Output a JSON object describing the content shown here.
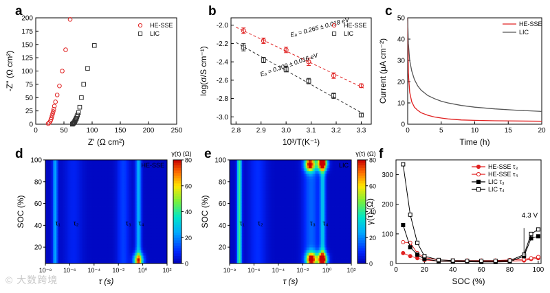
{
  "watermark": "© 大数跨境",
  "colors": {
    "red": "#e02020",
    "black": "#303030",
    "grey": "#666666"
  },
  "chart_data": [
    {
      "panel": "a",
      "type": "scatter",
      "xlabel": "Z' (Ω cm²)",
      "ylabel": "-Z'' (Ω cm²)",
      "xlim": [
        0,
        250
      ],
      "ylim": [
        0,
        200
      ],
      "xticks": [
        0,
        50,
        100,
        150,
        200,
        250
      ],
      "yticks": [
        0,
        25,
        50,
        75,
        100,
        125,
        150,
        175,
        200
      ],
      "legend": "top-right",
      "series": [
        {
          "name": "HE-SSE",
          "marker": "circle",
          "color": "#e02020",
          "x": [
            22,
            24,
            26,
            27,
            28,
            29,
            30,
            31,
            32,
            33,
            35,
            38,
            42,
            47,
            53,
            61
          ],
          "y": [
            1,
            3,
            6,
            9,
            12,
            16,
            20,
            24,
            28,
            34,
            42,
            55,
            72,
            100,
            140,
            197
          ]
        },
        {
          "name": "LIC",
          "marker": "square",
          "color": "#303030",
          "x": [
            65,
            66,
            67,
            68,
            69,
            70,
            71,
            72,
            73,
            74,
            76,
            78,
            81,
            85,
            92,
            104
          ],
          "y": [
            0,
            1,
            2,
            3,
            5,
            7,
            9,
            11,
            14,
            17,
            22,
            32,
            50,
            75,
            105,
            148
          ]
        }
      ]
    },
    {
      "panel": "b",
      "type": "scatter",
      "xlabel": "10³/T(K⁻¹)",
      "ylabel": "log(σ/S cm⁻¹)",
      "xlim": [
        2.78,
        3.34
      ],
      "ylim": [
        -3.08,
        -1.92
      ],
      "xticks": [
        2.8,
        2.9,
        3.0,
        3.1,
        3.2,
        3.3
      ],
      "yticks": [
        -2.0,
        -2.2,
        -2.4,
        -2.6,
        -2.8,
        -3.0
      ],
      "legend": "top-right",
      "annotations": [
        "Eₐ = 0.265 ± 0.018 eV",
        "Eₐ = 0.309 ± 0.016 eV"
      ],
      "series": [
        {
          "name": "HE-SSE",
          "marker": "circle",
          "color": "#e02020",
          "x": [
            2.83,
            2.91,
            3.0,
            3.09,
            3.19,
            3.3
          ],
          "y": [
            -2.06,
            -2.17,
            -2.27,
            -2.4,
            -2.55,
            -2.66
          ],
          "err": [
            0.03,
            0.03,
            0.03,
            0.04,
            0.03,
            0.02
          ]
        },
        {
          "name": "LIC",
          "marker": "square",
          "color": "#303030",
          "x": [
            2.83,
            2.91,
            3.0,
            3.09,
            3.19,
            3.3
          ],
          "y": [
            -2.24,
            -2.38,
            -2.48,
            -2.61,
            -2.77,
            -2.98
          ],
          "err": [
            0.04,
            0.03,
            0.03,
            0.03,
            0.03,
            0.02
          ]
        }
      ]
    },
    {
      "panel": "c",
      "type": "line",
      "xlabel": "Time (h)",
      "ylabel": "Current (μA cm⁻²)",
      "xlim": [
        0,
        20
      ],
      "ylim": [
        0,
        50
      ],
      "xticks": [
        0,
        5,
        10,
        15,
        20
      ],
      "yticks": [
        0,
        10,
        20,
        30,
        40,
        50
      ],
      "legend": "top-right",
      "series": [
        {
          "name": "HE-SSE",
          "color": "#e02020",
          "x": [
            0,
            0.1,
            0.3,
            0.6,
            1,
            1.5,
            2,
            3,
            4,
            5,
            6,
            8,
            10,
            13,
            16,
            20
          ],
          "y": [
            50,
            24,
            15,
            10.5,
            8,
            6.5,
            5.4,
            4.2,
            3.4,
            2.9,
            2.5,
            2.0,
            1.8,
            1.6,
            1.5,
            1.4
          ]
        },
        {
          "name": "LIC",
          "color": "#555555",
          "x": [
            0,
            0.1,
            0.3,
            0.6,
            1,
            1.5,
            2,
            3,
            4,
            5,
            6,
            8,
            10,
            13,
            16,
            20
          ],
          "y": [
            50,
            38,
            30,
            25,
            21,
            18,
            16,
            13.5,
            12,
            10.8,
            10,
            8.8,
            8,
            7.2,
            6.6,
            6.0
          ]
        }
      ]
    },
    {
      "panel": "d",
      "type": "heatmap",
      "title": "HE-SSE",
      "xlabel": "τ (s)",
      "ylabel": "SOC (%)",
      "xlim_log10": [
        -8,
        2
      ],
      "ylim": [
        5,
        100
      ],
      "xtick_labels": [
        "10⁻⁸",
        "10⁻⁶",
        "10⁻⁴",
        "10⁻²",
        "10⁰",
        "10²"
      ],
      "yticks": [
        20,
        40,
        60,
        80,
        100
      ],
      "colorbar": {
        "label": "γ(τ) (Ω)",
        "range": [
          0,
          80
        ],
        "ticks": [
          0,
          20,
          40,
          60,
          80
        ]
      },
      "peak_labels": [
        "τ₁",
        "τ₂",
        "τ₃",
        "τ₄"
      ],
      "peaks": [
        {
          "log_tau": -7.2,
          "width": 0.14,
          "amp": 22
        },
        {
          "log_tau": -5.7,
          "width": 0.5,
          "amp": 6
        },
        {
          "log_tau": -1.6,
          "width": 0.35,
          "amp": 10
        },
        {
          "log_tau": -0.35,
          "width": 0.16,
          "amp": 24
        }
      ],
      "hot_spots": [
        {
          "log_tau": -0.35,
          "soc": 8,
          "amp": 55
        }
      ]
    },
    {
      "panel": "e",
      "type": "heatmap",
      "title": "LIC",
      "xlabel": "τ (s)",
      "ylabel": "SOC (%)",
      "xlim_log10": [
        -8,
        2
      ],
      "ylim": [
        5,
        100
      ],
      "xtick_labels": [
        "10⁻⁸",
        "10⁻⁶",
        "10⁻⁴",
        "10⁻²",
        "10⁰",
        "10²"
      ],
      "yticks": [
        20,
        40,
        60,
        80,
        100
      ],
      "colorbar": {
        "label": "γ(τ) (Ω)",
        "range": [
          0,
          80
        ],
        "ticks": [
          0,
          20,
          40,
          60,
          80
        ]
      },
      "peak_labels": [
        "τ₁",
        "τ₂",
        "τ₃",
        "τ₄"
      ],
      "peaks": [
        {
          "log_tau": -7.2,
          "width": 0.13,
          "amp": 40
        },
        {
          "log_tau": -5.7,
          "width": 0.5,
          "amp": 8
        },
        {
          "log_tau": -1.3,
          "width": 0.45,
          "amp": 14
        },
        {
          "log_tau": -0.35,
          "width": 0.16,
          "amp": 26
        }
      ],
      "hot_spots": [
        {
          "log_tau": -1.4,
          "soc": 96,
          "amp": 75
        },
        {
          "log_tau": -0.4,
          "soc": 97,
          "amp": 85
        },
        {
          "log_tau": -1.3,
          "soc": 9,
          "amp": 80
        },
        {
          "log_tau": -0.4,
          "soc": 9,
          "amp": 85
        }
      ]
    },
    {
      "panel": "f",
      "type": "line",
      "xlabel": "SOC (%)",
      "ylabel": "γ(τ) (Ω)",
      "xlim": [
        0,
        102
      ],
      "ylim": [
        0,
        350
      ],
      "xticks": [
        0,
        20,
        40,
        60,
        80,
        100
      ],
      "yticks": [
        0,
        100,
        200,
        300
      ],
      "legend": "top-right",
      "annotation": "4.3 V",
      "series": [
        {
          "name": "HE-SSE τ₃",
          "marker": "circle-filled",
          "color": "#e02020",
          "x": [
            5,
            10,
            15,
            20,
            30,
            40,
            50,
            60,
            70,
            80,
            90,
            95,
            100
          ],
          "y": [
            35,
            25,
            18,
            12,
            8,
            7,
            7,
            7,
            7,
            8,
            10,
            15,
            18
          ]
        },
        {
          "name": "HE-SSE τ₄",
          "marker": "circle-open",
          "color": "#e02020",
          "x": [
            5,
            10,
            15,
            20,
            30,
            40,
            50,
            60,
            70,
            80,
            90,
            95,
            100
          ],
          "y": [
            72,
            70,
            35,
            20,
            12,
            10,
            10,
            10,
            10,
            12,
            14,
            18,
            22
          ]
        },
        {
          "name": "LIC τ₃",
          "marker": "square-filled",
          "color": "#000000",
          "x": [
            5,
            10,
            15,
            20,
            30,
            40,
            50,
            60,
            70,
            80,
            90,
            95,
            100
          ],
          "y": [
            130,
            55,
            30,
            15,
            8,
            6,
            6,
            5,
            5,
            6,
            25,
            85,
            92
          ]
        },
        {
          "name": "LIC τ₄",
          "marker": "square-open",
          "color": "#000000",
          "x": [
            5,
            10,
            15,
            20,
            30,
            40,
            50,
            60,
            70,
            80,
            90,
            95,
            100
          ],
          "y": [
            335,
            165,
            70,
            25,
            12,
            10,
            9,
            9,
            9,
            10,
            30,
            100,
            115
          ]
        }
      ]
    }
  ]
}
